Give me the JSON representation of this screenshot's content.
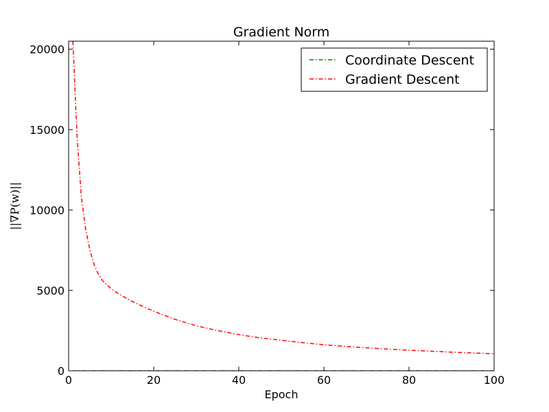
{
  "chart_data": {
    "type": "line",
    "title": "Gradient Norm",
    "xlabel": "Epoch",
    "ylabel": "||∇P(w)||",
    "xlim": [
      0,
      100
    ],
    "ylim": [
      0,
      20500
    ],
    "xticks": [
      0,
      20,
      40,
      60,
      80,
      100
    ],
    "yticks": [
      0,
      5000,
      10000,
      15000,
      20000
    ],
    "grid": false,
    "legend_position": "top-right",
    "series": [
      {
        "name": "Coordinate Descent",
        "color": "#008000",
        "style": "dash-dot",
        "x": [
          1,
          2,
          3,
          5,
          10,
          20,
          30,
          40,
          50,
          60,
          70,
          80,
          90,
          100
        ],
        "y": [
          0,
          0,
          0,
          0,
          0,
          0,
          0,
          0,
          0,
          0,
          0,
          0,
          0,
          0
        ]
      },
      {
        "name": "Gradient Descent",
        "color": "#ff0000",
        "style": "dash-dot",
        "x": [
          1,
          2,
          3,
          4,
          5,
          6,
          7,
          8,
          9,
          10,
          12,
          15,
          20,
          25,
          30,
          35,
          40,
          45,
          50,
          55,
          60,
          65,
          70,
          75,
          80,
          85,
          90,
          95,
          100
        ],
        "y": [
          20500,
          14500,
          10800,
          8800,
          7500,
          6600,
          6000,
          5600,
          5350,
          5100,
          4750,
          4300,
          3700,
          3200,
          2800,
          2500,
          2250,
          2050,
          1900,
          1750,
          1620,
          1520,
          1430,
          1350,
          1280,
          1220,
          1160,
          1110,
          1060
        ]
      }
    ]
  }
}
